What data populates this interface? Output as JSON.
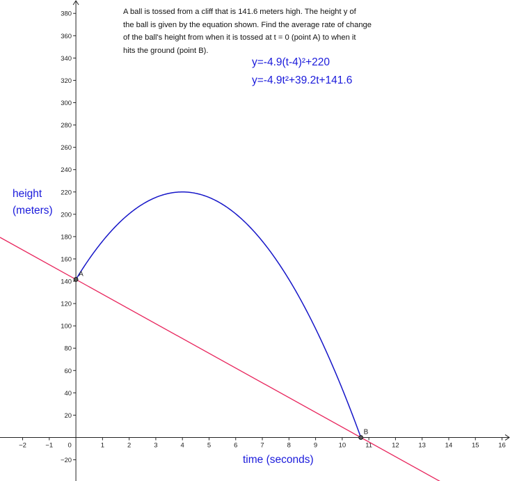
{
  "problem_text": [
    "A ball is tossed from a cliff that is 141.6 meters high.  The height y of",
    "the ball is given by the equation shown.  Find the average rate of change",
    "of the ball's height from when it is tossed at t = 0 (point A) to when it",
    "hits the ground (point B)."
  ],
  "equations": [
    "y=-4.9(t-4)²+220",
    "y=-4.9t²+39.2t+141.6"
  ],
  "ylabel_lines": [
    "height",
    "(meters)"
  ],
  "xlabel": "time (seconds)",
  "colors": {
    "curve": "#1515c8",
    "secant": "#e8245c",
    "axis": "#222222",
    "label_text": "#1a1adb",
    "point": "#333333"
  },
  "chart_data": {
    "type": "line",
    "xlim": [
      -2.85,
      16.3
    ],
    "ylim": [
      -39,
      392
    ],
    "x_ticks": [
      -2,
      -1,
      0,
      1,
      2,
      3,
      4,
      5,
      6,
      7,
      8,
      9,
      10,
      11,
      12,
      13,
      14,
      15,
      16
    ],
    "x_tick_labels": [
      "−2",
      "−1",
      "0",
      "1",
      "2",
      "3",
      "4",
      "5",
      "6",
      "7",
      "8",
      "9",
      "10",
      "11",
      "12",
      "13",
      "14",
      "15",
      "16"
    ],
    "y_ticks": [
      -20,
      20,
      40,
      60,
      80,
      100,
      120,
      140,
      160,
      180,
      200,
      220,
      240,
      260,
      280,
      300,
      320,
      340,
      360,
      380
    ],
    "y_tick_labels": [
      "−20",
      "20",
      "40",
      "60",
      "80",
      "100",
      "120",
      "140",
      "160",
      "180",
      "200",
      "220",
      "240",
      "260",
      "280",
      "300",
      "320",
      "340",
      "360",
      "380"
    ],
    "grid": false,
    "series": [
      {
        "kind": "parabola",
        "equation": "y=-4.9(t-4)²+220",
        "a": -4.9,
        "h": 4,
        "k": 220,
        "domain": [
          0,
          10.7
        ]
      },
      {
        "kind": "line",
        "through": [
          "A",
          "B"
        ]
      }
    ],
    "points": [
      {
        "label": "A",
        "x": 0,
        "y": 141.6
      },
      {
        "label": "B",
        "x": 10.7,
        "y": 0
      }
    ]
  }
}
